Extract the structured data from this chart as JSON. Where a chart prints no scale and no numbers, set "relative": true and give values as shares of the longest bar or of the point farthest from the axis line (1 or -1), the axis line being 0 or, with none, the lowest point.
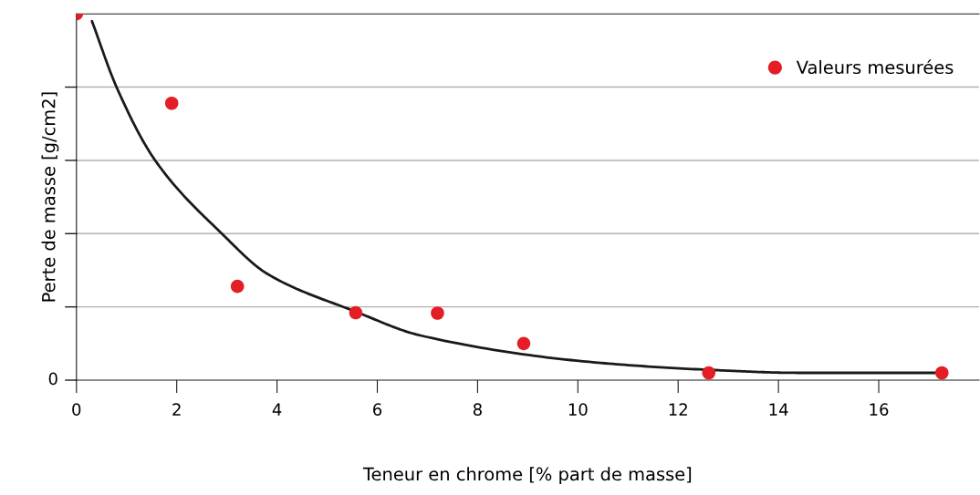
{
  "chart_data": {
    "type": "scatter",
    "xlabel": "Teneur en chrome [% part de masse]",
    "ylabel": "Perte de masse [g/cm2]",
    "relative": true,
    "xlim": [
      0,
      18
    ],
    "xticks": [
      0,
      2,
      4,
      6,
      8,
      10,
      12,
      14,
      16
    ],
    "annotations": [
      "0"
    ],
    "ref_lines": [
      {
        "axis": "y",
        "value": 0.2,
        "color": "#b0b0b0"
      },
      {
        "axis": "y",
        "value": 0.4,
        "color": "#b0b0b0"
      },
      {
        "axis": "y",
        "value": 0.6,
        "color": "#b0b0b0"
      },
      {
        "axis": "y",
        "value": 0.8,
        "color": "#b0b0b0"
      }
    ],
    "legend": "right",
    "series": [
      {
        "name": "Valeurs mesurées",
        "marker": "circle",
        "color": "#e31e24",
        "x": [
          0,
          1.9,
          3.21,
          5.57,
          7.2,
          8.92,
          12.61,
          17.26
        ],
        "values": [
          1,
          0.756,
          0.256,
          0.184,
          0.183,
          0.1,
          0.02,
          0.02
        ]
      },
      {
        "type": "line",
        "color": "#1a1a1a",
        "line_style": "solid",
        "x": [
          0.31,
          0.8,
          1.57,
          2.9,
          3.81,
          5.57,
          6.86,
          10.46,
          12.81,
          14.38,
          17.12
        ],
        "values": [
          0.98,
          0.8,
          0.6,
          0.4,
          0.29,
          0.187,
          0.122,
          0.047,
          0.027,
          0.02,
          0.02
        ]
      }
    ]
  }
}
